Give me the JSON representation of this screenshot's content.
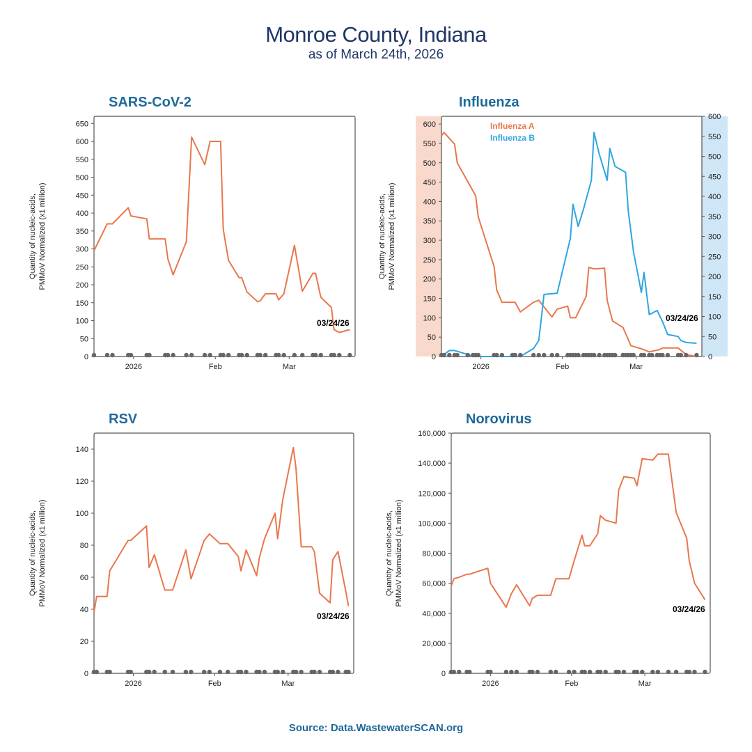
{
  "page": {
    "title": "Monroe County, Indiana",
    "subtitle": "as of March 24th, 2026",
    "source": "Source: Data.WastewaterSCAN.org"
  },
  "colors": {
    "orange": "#e8774c",
    "blue": "#2fa6e0",
    "title_blue": "#1f6a9a",
    "dots": "#666666",
    "band_left": "#f9d9cc",
    "band_right": "#cfe6f7"
  },
  "chart_data": [
    {
      "id": "sars",
      "type": "line",
      "title": "SARS-CoV-2",
      "ylabel": [
        "Quantity of nucleic-acids,",
        "PMMoV Normalized (x1 million)"
      ],
      "xlim": [
        "2025-12-17",
        "2026-03-26"
      ],
      "ylim": [
        0,
        670
      ],
      "yticks": [
        0,
        50,
        100,
        150,
        200,
        250,
        300,
        350,
        400,
        450,
        500,
        550,
        600,
        650
      ],
      "xticks": [
        {
          "date": "2026-01-01",
          "label": "2026"
        },
        {
          "date": "2026-02-01",
          "label": "Feb"
        },
        {
          "date": "2026-03-01",
          "label": "Mar"
        }
      ],
      "end_label": "03/24/26",
      "series": [
        {
          "values": [
            [
              "2025-12-17",
              295
            ],
            [
              "2025-12-22",
              370
            ],
            [
              "2025-12-24",
              370
            ],
            [
              "2025-12-30",
              415
            ],
            [
              "2025-12-31",
              392
            ],
            [
              "2026-01-06",
              384
            ],
            [
              "2026-01-07",
              328
            ],
            [
              "2026-01-13",
              328
            ],
            [
              "2026-01-14",
              272
            ],
            [
              "2026-01-16",
              228
            ],
            [
              "2026-01-21",
              320
            ],
            [
              "2026-01-23",
              612
            ],
            [
              "2026-01-28",
              535
            ],
            [
              "2026-01-30",
              600
            ],
            [
              "2026-02-03",
              600
            ],
            [
              "2026-02-04",
              355
            ],
            [
              "2026-02-06",
              268
            ],
            [
              "2026-02-10",
              220
            ],
            [
              "2026-02-11",
              220
            ],
            [
              "2026-02-13",
              180
            ],
            [
              "2026-02-17",
              153
            ],
            [
              "2026-02-18",
              155
            ],
            [
              "2026-02-20",
              175
            ],
            [
              "2026-02-24",
              175
            ],
            [
              "2026-02-25",
              158
            ],
            [
              "2026-02-27",
              175
            ],
            [
              "2026-03-03",
              310
            ],
            [
              "2026-03-06",
              182
            ],
            [
              "2026-03-10",
              232
            ],
            [
              "2026-03-11",
              232
            ],
            [
              "2026-03-13",
              165
            ],
            [
              "2026-03-17",
              137
            ],
            [
              "2026-03-18",
              75
            ],
            [
              "2026-03-20",
              67
            ],
            [
              "2026-03-24",
              75
            ]
          ]
        }
      ]
    },
    {
      "id": "flu",
      "type": "line",
      "title": "Influenza",
      "ylabel": [
        "Quantity of nucleic-acids,",
        "PMMoV Normalized (x1 million)"
      ],
      "xlim": [
        "2025-12-17",
        "2026-03-26"
      ],
      "ylim": [
        0,
        620
      ],
      "yticks": [
        0,
        50,
        100,
        150,
        200,
        250,
        300,
        350,
        400,
        450,
        500,
        550,
        600
      ],
      "y2lim": [
        0,
        600
      ],
      "y2ticks": [
        0,
        50,
        100,
        150,
        200,
        250,
        300,
        350,
        400,
        450,
        500,
        550,
        600
      ],
      "xticks": [
        {
          "date": "2026-01-01",
          "label": "2026"
        },
        {
          "date": "2026-02-01",
          "label": "Feb"
        },
        {
          "date": "2026-03-01",
          "label": "Mar"
        }
      ],
      "end_label": "03/24/26",
      "legend": [
        "Influenza A",
        "Influenza B"
      ],
      "series": [
        {
          "name": "Influenza A",
          "axis": "left",
          "color": "orange",
          "values": [
            [
              "2025-12-17",
              570
            ],
            [
              "2025-12-18",
              578
            ],
            [
              "2025-12-22",
              548
            ],
            [
              "2025-12-23",
              500
            ],
            [
              "2025-12-30",
              415
            ],
            [
              "2025-12-31",
              360
            ],
            [
              "2026-01-06",
              232
            ],
            [
              "2026-01-07",
              172
            ],
            [
              "2026-01-09",
              140
            ],
            [
              "2026-01-13",
              140
            ],
            [
              "2026-01-14",
              140
            ],
            [
              "2026-01-16",
              115
            ],
            [
              "2026-01-21",
              140
            ],
            [
              "2026-01-23",
              145
            ],
            [
              "2026-01-28",
              102
            ],
            [
              "2026-01-30",
              122
            ],
            [
              "2026-02-03",
              130
            ],
            [
              "2026-02-04",
              100
            ],
            [
              "2026-02-06",
              100
            ],
            [
              "2026-02-10",
              155
            ],
            [
              "2026-02-11",
              230
            ],
            [
              "2026-02-13",
              226
            ],
            [
              "2026-02-17",
              228
            ],
            [
              "2026-02-18",
              145
            ],
            [
              "2026-02-20",
              92
            ],
            [
              "2026-02-24",
              75
            ],
            [
              "2026-02-25",
              60
            ],
            [
              "2026-02-27",
              28
            ],
            [
              "2026-03-03",
              20
            ],
            [
              "2026-03-06",
              12
            ],
            [
              "2026-03-10",
              18
            ],
            [
              "2026-03-11",
              22
            ],
            [
              "2026-03-13",
              22
            ],
            [
              "2026-03-17",
              22
            ],
            [
              "2026-03-20",
              5
            ],
            [
              "2026-03-24",
              0
            ]
          ]
        },
        {
          "name": "Influenza B",
          "axis": "right",
          "color": "blue",
          "values": [
            [
              "2025-12-17",
              0
            ],
            [
              "2025-12-20",
              15
            ],
            [
              "2025-12-22",
              15
            ],
            [
              "2025-12-27",
              5
            ],
            [
              "2025-12-29",
              0
            ],
            [
              "2026-01-06",
              0
            ],
            [
              "2026-01-13",
              0
            ],
            [
              "2026-01-16",
              0
            ],
            [
              "2026-01-21",
              20
            ],
            [
              "2026-01-23",
              40
            ],
            [
              "2026-01-25",
              155
            ],
            [
              "2026-01-30",
              158
            ],
            [
              "2026-02-04",
              295
            ],
            [
              "2026-02-05",
              380
            ],
            [
              "2026-02-07",
              325
            ],
            [
              "2026-02-09",
              368
            ],
            [
              "2026-02-12",
              440
            ],
            [
              "2026-02-13",
              560
            ],
            [
              "2026-02-15",
              505
            ],
            [
              "2026-02-18",
              440
            ],
            [
              "2026-02-19",
              520
            ],
            [
              "2026-02-21",
              475
            ],
            [
              "2026-02-25",
              460
            ],
            [
              "2026-02-26",
              365
            ],
            [
              "2026-02-28",
              262
            ],
            [
              "2026-03-03",
              160
            ],
            [
              "2026-03-04",
              210
            ],
            [
              "2026-03-06",
              105
            ],
            [
              "2026-03-07",
              108
            ],
            [
              "2026-03-09",
              115
            ],
            [
              "2026-03-11",
              88
            ],
            [
              "2026-03-13",
              55
            ],
            [
              "2026-03-17",
              50
            ],
            [
              "2026-03-18",
              40
            ],
            [
              "2026-03-20",
              35
            ],
            [
              "2026-03-24",
              33
            ]
          ]
        }
      ]
    },
    {
      "id": "rsv",
      "type": "line",
      "title": "RSV",
      "ylabel": [
        "Quantity of nucleic-acids,",
        "PMMoV Normalized (x1 million)"
      ],
      "xlim": [
        "2025-12-17",
        "2026-03-26"
      ],
      "ylim": [
        0,
        150
      ],
      "yticks": [
        0,
        20,
        40,
        60,
        80,
        100,
        120,
        140
      ],
      "xticks": [
        {
          "date": "2026-01-01",
          "label": "2026"
        },
        {
          "date": "2026-02-01",
          "label": "Feb"
        },
        {
          "date": "2026-03-01",
          "label": "Mar"
        }
      ],
      "end_label": "03/24/26",
      "series": [
        {
          "values": [
            [
              "2025-12-17",
              38
            ],
            [
              "2025-12-18",
              48
            ],
            [
              "2025-12-22",
              48
            ],
            [
              "2025-12-23",
              64
            ],
            [
              "2025-12-30",
              83
            ],
            [
              "2025-12-31",
              83
            ],
            [
              "2026-01-06",
              92
            ],
            [
              "2026-01-07",
              66
            ],
            [
              "2026-01-09",
              74
            ],
            [
              "2026-01-13",
              52
            ],
            [
              "2026-01-16",
              52
            ],
            [
              "2026-01-21",
              77
            ],
            [
              "2026-01-23",
              59
            ],
            [
              "2026-01-28",
              83
            ],
            [
              "2026-01-30",
              87
            ],
            [
              "2026-02-03",
              81
            ],
            [
              "2026-02-06",
              81
            ],
            [
              "2026-02-10",
              73
            ],
            [
              "2026-02-11",
              64
            ],
            [
              "2026-02-13",
              77
            ],
            [
              "2026-02-17",
              61
            ],
            [
              "2026-02-18",
              72
            ],
            [
              "2026-02-20",
              84
            ],
            [
              "2026-02-24",
              100
            ],
            [
              "2026-02-25",
              84
            ],
            [
              "2026-02-27",
              109
            ],
            [
              "2026-03-03",
              141
            ],
            [
              "2026-03-04",
              128
            ],
            [
              "2026-03-06",
              79
            ],
            [
              "2026-03-10",
              79
            ],
            [
              "2026-03-11",
              76
            ],
            [
              "2026-03-13",
              50
            ],
            [
              "2026-03-17",
              44
            ],
            [
              "2026-03-18",
              71
            ],
            [
              "2026-03-20",
              76
            ],
            [
              "2026-03-23",
              51
            ],
            [
              "2026-03-24",
              42
            ]
          ]
        }
      ]
    },
    {
      "id": "noro",
      "type": "line",
      "title": "Norovirus",
      "ylabel": [
        "Quantity of nucleic-acids,",
        "PMMoV Normalized (x1 million)"
      ],
      "xlim": [
        "2025-12-17",
        "2026-03-26"
      ],
      "ylim": [
        0,
        160000
      ],
      "yticks": [
        0,
        20000,
        40000,
        60000,
        80000,
        100000,
        120000,
        140000,
        160000
      ],
      "xticks": [
        {
          "date": "2026-01-01",
          "label": "2026"
        },
        {
          "date": "2026-02-01",
          "label": "Feb"
        },
        {
          "date": "2026-03-01",
          "label": "Mar"
        }
      ],
      "end_label": "03/24/26",
      "series": [
        {
          "values": [
            [
              "2025-12-17",
              58000
            ],
            [
              "2025-12-18",
              63000
            ],
            [
              "2025-12-20",
              64000
            ],
            [
              "2025-12-23",
              66000
            ],
            [
              "2025-12-24",
              66000
            ],
            [
              "2025-12-31",
              70000
            ],
            [
              "2026-01-01",
              60000
            ],
            [
              "2026-01-07",
              44000
            ],
            [
              "2026-01-09",
              53000
            ],
            [
              "2026-01-11",
              59000
            ],
            [
              "2026-01-16",
              45000
            ],
            [
              "2026-01-17",
              50000
            ],
            [
              "2026-01-19",
              52000
            ],
            [
              "2026-01-24",
              52000
            ],
            [
              "2026-01-26",
              63000
            ],
            [
              "2026-01-31",
              63000
            ],
            [
              "2026-02-02",
              75000
            ],
            [
              "2026-02-05",
              92000
            ],
            [
              "2026-02-06",
              85000
            ],
            [
              "2026-02-08",
              85000
            ],
            [
              "2026-02-11",
              93000
            ],
            [
              "2026-02-12",
              105000
            ],
            [
              "2026-02-14",
              102000
            ],
            [
              "2026-02-18",
              100000
            ],
            [
              "2026-02-19",
              122000
            ],
            [
              "2026-02-21",
              131000
            ],
            [
              "2026-02-25",
              130000
            ],
            [
              "2026-02-26",
              125000
            ],
            [
              "2026-02-28",
              143000
            ],
            [
              "2026-03-04",
              142000
            ],
            [
              "2026-03-06",
              146000
            ],
            [
              "2026-03-10",
              146000
            ],
            [
              "2026-03-13",
              107000
            ],
            [
              "2026-03-17",
              90000
            ],
            [
              "2026-03-18",
              75000
            ],
            [
              "2026-03-20",
              60000
            ],
            [
              "2026-03-24",
              49000
            ]
          ]
        }
      ]
    }
  ]
}
